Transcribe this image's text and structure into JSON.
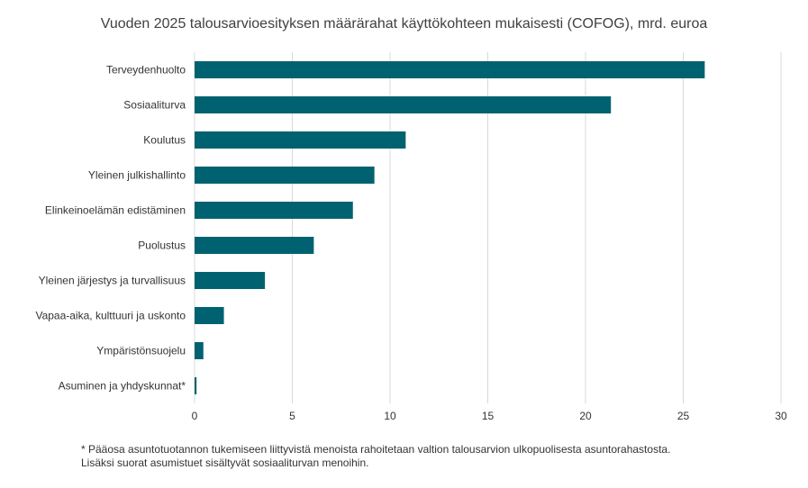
{
  "colors": {
    "bar": "#006270",
    "grid": "#d9d9d9",
    "text": "#333333"
  },
  "chart_data": {
    "type": "bar",
    "orientation": "horizontal",
    "title": "Vuoden 2025 talousarvioesityksen määrärahat käyttökohteen mukaisesti (COFOG), mrd. euroa",
    "xlabel": "",
    "ylabel": "",
    "xlim": [
      0,
      30
    ],
    "xticks": [
      0,
      5,
      10,
      15,
      20,
      25,
      30
    ],
    "grid": "vertical",
    "legend": "none",
    "categories": [
      "Terveydenhuolto",
      "Sosiaaliturva",
      "Koulutus",
      "Yleinen julkishallinto",
      "Elinkeinoelämän edistäminen",
      "Puolustus",
      "Yleinen järjestys ja turvallisuus",
      "Vapaa-aika, kulttuuri ja uskonto",
      "Ympäristönsuojelu",
      "Asuminen ja yhdyskunnat*"
    ],
    "values": [
      26.1,
      21.3,
      10.8,
      9.2,
      8.1,
      6.1,
      3.6,
      1.5,
      0.45,
      0.1
    ]
  },
  "footnote": {
    "line1": "* Pääosa asuntotuotannon tukemiseen liittyvistä menoista rahoitetaan valtion talousarvion ulkopuolisesta asuntorahastosta.",
    "line2": "Lisäksi suorat asumistuet sisältyvät sosiaaliturvan menoihin."
  }
}
